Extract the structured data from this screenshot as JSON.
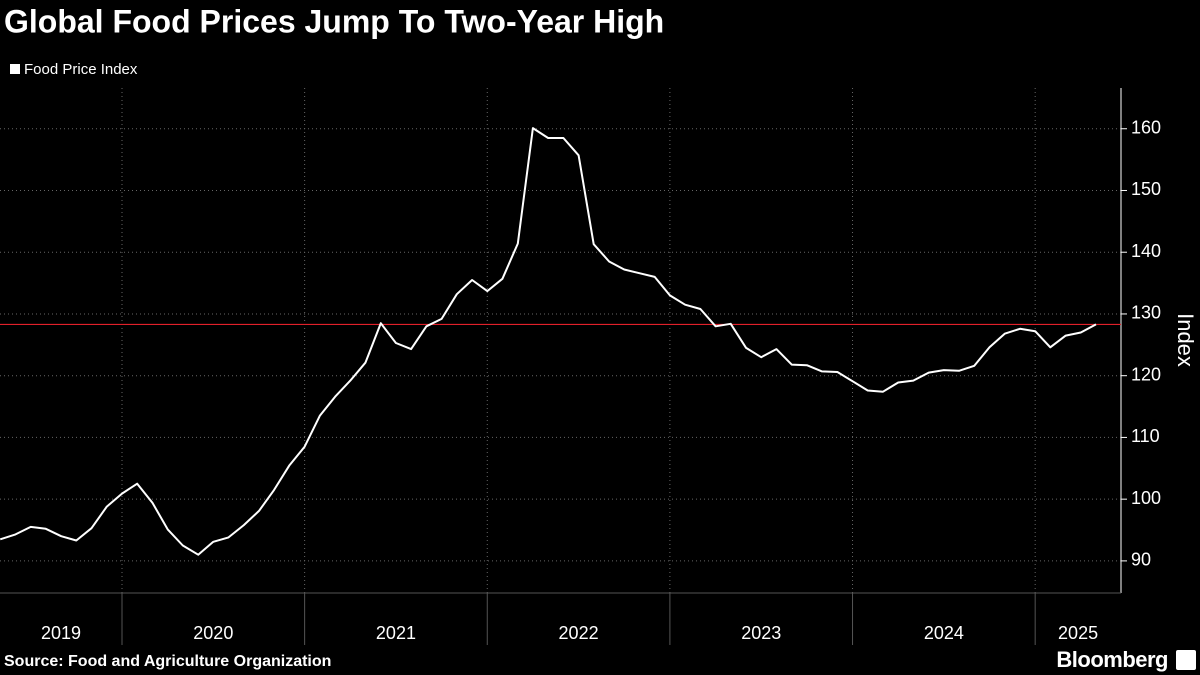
{
  "chart_data": {
    "type": "line",
    "title": "Global Food Prices Jump To Two-Year High",
    "y_label": "Index",
    "source": "Source: Food and Agriculture Organization",
    "brand": "Bloomberg",
    "series": [
      {
        "name": "Food Price Index",
        "color": "#ffffff",
        "x": [
          2019.333,
          2019.417,
          2019.5,
          2019.583,
          2019.667,
          2019.75,
          2019.833,
          2019.917,
          2020.0,
          2020.083,
          2020.167,
          2020.25,
          2020.333,
          2020.417,
          2020.5,
          2020.583,
          2020.667,
          2020.75,
          2020.833,
          2020.917,
          2021.0,
          2021.083,
          2021.167,
          2021.25,
          2021.333,
          2021.417,
          2021.5,
          2021.583,
          2021.667,
          2021.75,
          2021.833,
          2021.917,
          2022.0,
          2022.083,
          2022.167,
          2022.25,
          2022.333,
          2022.417,
          2022.5,
          2022.583,
          2022.667,
          2022.75,
          2022.833,
          2022.917,
          2023.0,
          2023.083,
          2023.167,
          2023.25,
          2023.333,
          2023.417,
          2023.5,
          2023.583,
          2023.667,
          2023.75,
          2023.833,
          2023.917,
          2024.0,
          2024.083,
          2024.167,
          2024.25,
          2024.333,
          2024.417,
          2024.5,
          2024.583,
          2024.667,
          2024.75,
          2024.833,
          2024.917,
          2025.0,
          2025.083,
          2025.167,
          2025.25,
          2025.333
        ],
        "values": [
          93.5,
          94.3,
          95.5,
          95.2,
          94.0,
          93.3,
          95.3,
          98.8,
          100.9,
          102.5,
          99.4,
          95.1,
          92.5,
          91.0,
          93.1,
          93.8,
          95.8,
          98.1,
          101.5,
          105.5,
          108.5,
          113.5,
          116.6,
          119.2,
          122.1,
          128.5,
          125.3,
          124.3,
          128.0,
          129.2,
          133.2,
          135.5,
          133.7,
          135.7,
          141.4,
          160.1,
          158.5,
          158.5,
          155.7,
          141.3,
          138.5,
          137.2,
          136.6,
          136.0,
          133.0,
          131.5,
          130.8,
          128.0,
          128.4,
          124.5,
          123.0,
          124.3,
          121.8,
          121.7,
          120.7,
          120.6,
          119.1,
          117.6,
          117.4,
          118.9,
          119.2,
          120.5,
          120.9,
          120.8,
          121.6,
          124.6,
          126.8,
          127.6,
          127.2,
          124.6,
          126.5,
          127.0,
          128.3
        ]
      }
    ],
    "reference_line": {
      "value": 128.3,
      "color": "#e0202a"
    },
    "xlim": [
      2019.332,
      2025.47
    ],
    "xticks": [
      2020,
      2021,
      2022,
      2023,
      2024,
      2025
    ],
    "x_labels": [
      "2019",
      "2020",
      "2021",
      "2022",
      "2023",
      "2024",
      "2025"
    ],
    "ylim": [
      84.8,
      166.6
    ],
    "yticks": [
      90,
      100,
      110,
      120,
      130,
      140,
      150,
      160
    ],
    "grid": true
  }
}
